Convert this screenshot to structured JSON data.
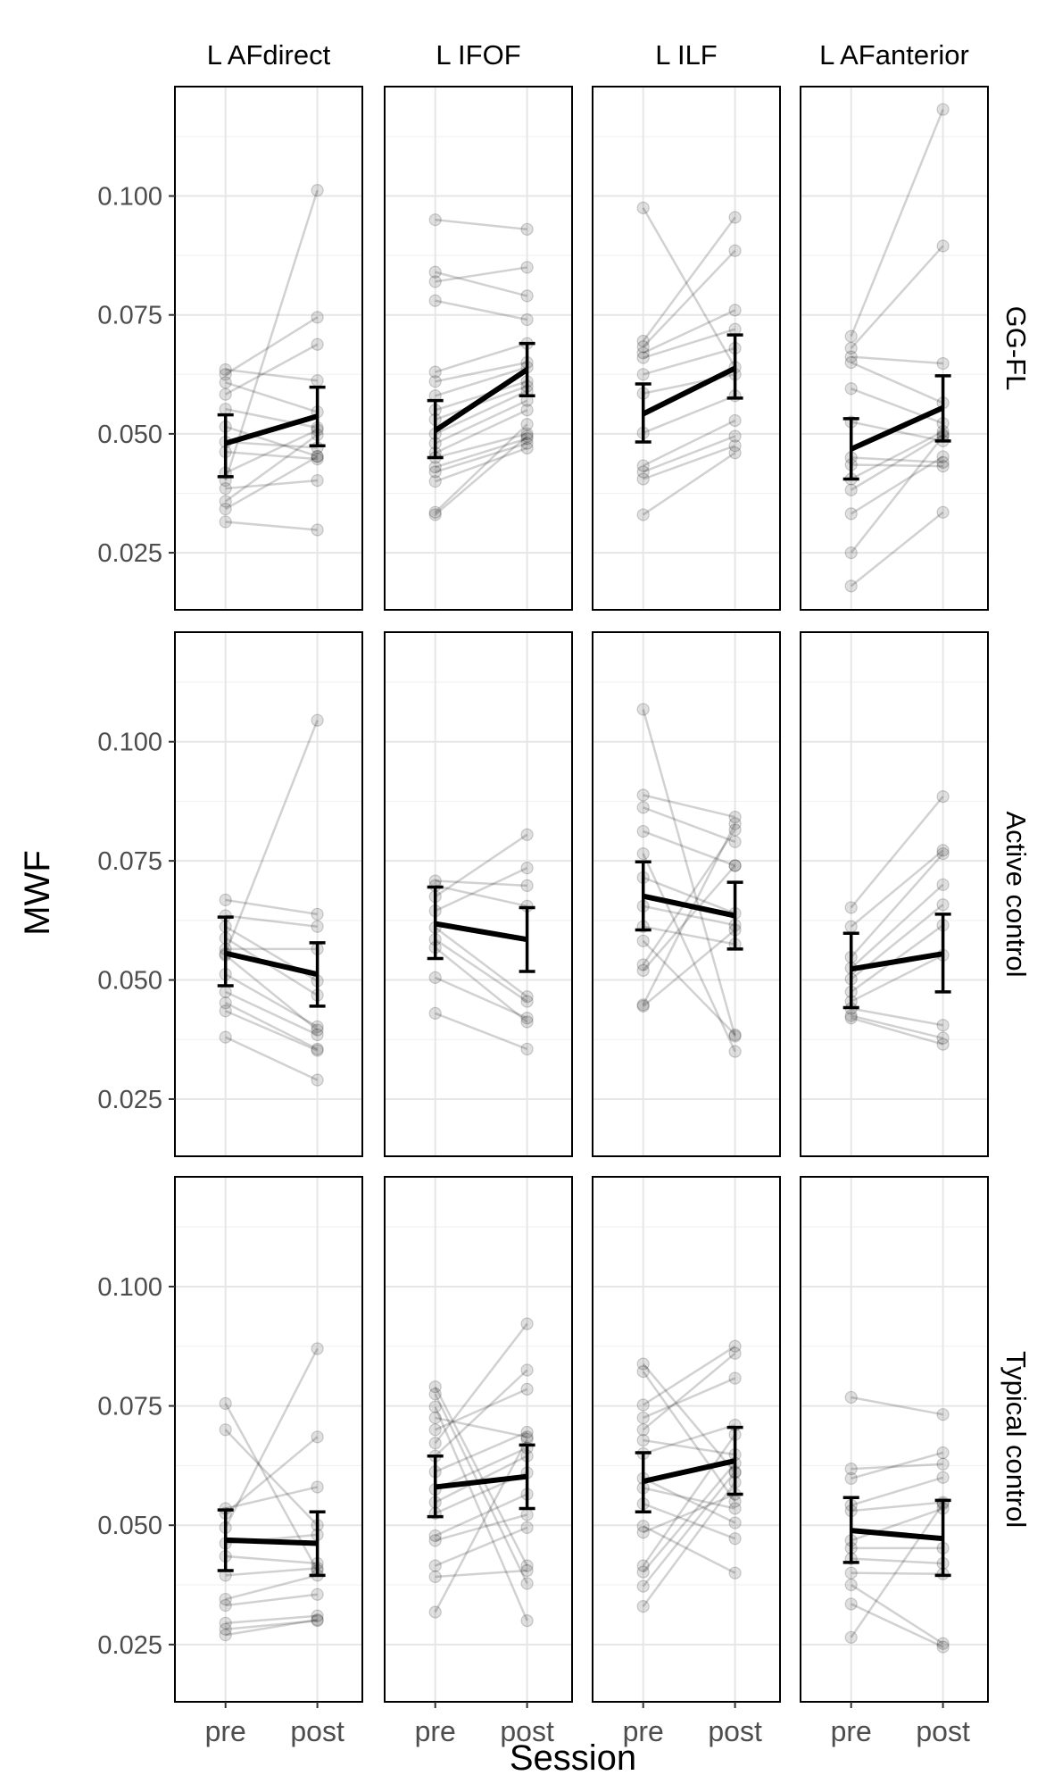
{
  "chart_data": {
    "type": "scatter",
    "description_type": "faceted paired-points with mean and error bars",
    "xlabel": "Session",
    "ylabel": "MWF",
    "x_categories": [
      "pre",
      "post"
    ],
    "ylim": [
      0.013,
      0.123
    ],
    "y_ticks": [
      0.025,
      0.05,
      0.075,
      0.1
    ],
    "y_tick_labels": [
      "0.025",
      "0.050",
      "0.075",
      "0.100"
    ],
    "grid": true,
    "facet_columns": [
      "L AFdirect",
      "L IFOF",
      "L ILF",
      "L AFanterior"
    ],
    "facet_rows": [
      "GG-FL",
      "Active control",
      "Typical control"
    ],
    "panels": [
      {
        "row": "GG-FL",
        "column": "L AFdirect",
        "pairs": [
          [
            0.0635,
            0.0612
          ],
          [
            0.0625,
            0.0745
          ],
          [
            0.0608,
            0.0546
          ],
          [
            0.0583,
            0.0688
          ],
          [
            0.0552,
            0.0513
          ],
          [
            0.0515,
            0.0453
          ],
          [
            0.0483,
            0.0471
          ],
          [
            0.0462,
            0.0447
          ],
          [
            0.0418,
            0.0508
          ],
          [
            0.0402,
            0.1012
          ],
          [
            0.0385,
            0.0402
          ],
          [
            0.0358,
            0.0498
          ],
          [
            0.0342,
            0.0452
          ],
          [
            0.0315,
            0.0298
          ]
        ],
        "mean": [
          0.048,
          0.0537
        ],
        "err": [
          [
            0.041,
            0.054
          ],
          [
            0.0475,
            0.0598
          ]
        ]
      },
      {
        "row": "GG-FL",
        "column": "L IFOF",
        "pairs": [
          [
            0.095,
            0.093
          ],
          [
            0.084,
            0.079
          ],
          [
            0.082,
            0.085
          ],
          [
            0.078,
            0.074
          ],
          [
            0.063,
            0.069
          ],
          [
            0.061,
            0.065
          ],
          [
            0.058,
            0.064
          ],
          [
            0.055,
            0.061
          ],
          [
            0.053,
            0.06
          ],
          [
            0.05,
            0.059
          ],
          [
            0.048,
            0.057
          ],
          [
            0.046,
            0.055
          ],
          [
            0.045,
            0.05
          ],
          [
            0.043,
            0.049
          ],
          [
            0.042,
            0.048
          ],
          [
            0.04,
            0.047
          ],
          [
            0.033,
            0.0495
          ],
          [
            0.0335,
            0.052
          ]
        ],
        "mean": [
          0.0507,
          0.0635
        ],
        "err": [
          [
            0.045,
            0.057
          ],
          [
            0.058,
            0.069
          ]
        ]
      },
      {
        "row": "GG-FL",
        "column": "L ILF",
        "pairs": [
          [
            0.0975,
            0.064
          ],
          [
            0.0695,
            0.0955
          ],
          [
            0.0683,
            0.0885
          ],
          [
            0.067,
            0.076
          ],
          [
            0.066,
            0.072
          ],
          [
            0.0625,
            0.068
          ],
          [
            0.0585,
            0.0625
          ],
          [
            0.0502,
            0.058
          ],
          [
            0.0433,
            0.0528
          ],
          [
            0.042,
            0.0495
          ],
          [
            0.0405,
            0.0475
          ],
          [
            0.033,
            0.046
          ]
        ],
        "mean": [
          0.0542,
          0.0638
        ],
        "err": [
          [
            0.0483,
            0.0605
          ],
          [
            0.0575,
            0.0708
          ]
        ]
      },
      {
        "row": "GG-FL",
        "column": "L AFanterior",
        "pairs": [
          [
            0.0705,
            0.1182
          ],
          [
            0.068,
            0.0895
          ],
          [
            0.0662,
            0.0648
          ],
          [
            0.065,
            0.0565
          ],
          [
            0.0595,
            0.0522
          ],
          [
            0.0525,
            0.0485
          ],
          [
            0.045,
            0.044
          ],
          [
            0.0435,
            0.0432
          ],
          [
            0.0405,
            0.0505
          ],
          [
            0.0382,
            0.0498
          ],
          [
            0.0332,
            0.0452
          ],
          [
            0.025,
            0.0495
          ],
          [
            0.018,
            0.0335
          ]
        ],
        "mean": [
          0.0468,
          0.0555
        ],
        "err": [
          [
            0.0405,
            0.0532
          ],
          [
            0.0485,
            0.0622
          ]
        ]
      },
      {
        "row": "Active control",
        "column": "L AFdirect",
        "pairs": [
          [
            0.0668,
            0.0638
          ],
          [
            0.0635,
            0.0612
          ],
          [
            0.0612,
            0.0498
          ],
          [
            0.0588,
            0.0468
          ],
          [
            0.0565,
            0.0565
          ],
          [
            0.0552,
            0.0395
          ],
          [
            0.0512,
            0.0402
          ],
          [
            0.0475,
            0.0385
          ],
          [
            0.0452,
            0.0355
          ],
          [
            0.0435,
            0.0352
          ],
          [
            0.038,
            0.029
          ],
          [
            0.0555,
            0.1045
          ]
        ],
        "mean": [
          0.0556,
          0.0512
        ],
        "err": [
          [
            0.0488,
            0.0632
          ],
          [
            0.0445,
            0.0578
          ]
        ]
      },
      {
        "row": "Active control",
        "column": "L IFOF",
        "pairs": [
          [
            0.0708,
            0.0698
          ],
          [
            0.0698,
            0.0655
          ],
          [
            0.0675,
            0.0805
          ],
          [
            0.0645,
            0.0735
          ],
          [
            0.061,
            0.0465
          ],
          [
            0.0585,
            0.0455
          ],
          [
            0.0568,
            0.0412
          ],
          [
            0.0505,
            0.042
          ],
          [
            0.043,
            0.0355
          ]
        ],
        "mean": [
          0.0618,
          0.0585
        ],
        "err": [
          [
            0.0545,
            0.0695
          ],
          [
            0.0518,
            0.0652
          ]
        ]
      },
      {
        "row": "Active control",
        "column": "L ILF",
        "pairs": [
          [
            0.1068,
            0.0382
          ],
          [
            0.0888,
            0.0842
          ],
          [
            0.0862,
            0.079
          ],
          [
            0.0812,
            0.074
          ],
          [
            0.0765,
            0.035
          ],
          [
            0.0715,
            0.064
          ],
          [
            0.0655,
            0.0615
          ],
          [
            0.0612,
            0.0575
          ],
          [
            0.0582,
            0.0385
          ],
          [
            0.0532,
            0.0815
          ],
          [
            0.052,
            0.074
          ],
          [
            0.0448,
            0.0828
          ],
          [
            0.0445,
            0.0605
          ]
        ],
        "mean": [
          0.0676,
          0.0635
        ],
        "err": [
          [
            0.0605,
            0.0748
          ],
          [
            0.0565,
            0.0705
          ]
        ]
      },
      {
        "row": "Active control",
        "column": "L AFanterior",
        "pairs": [
          [
            0.0652,
            0.0885
          ],
          [
            0.0612,
            0.0772
          ],
          [
            0.0548,
            0.0765
          ],
          [
            0.0525,
            0.07
          ],
          [
            0.0502,
            0.0658
          ],
          [
            0.0475,
            0.0615
          ],
          [
            0.0455,
            0.0552
          ],
          [
            0.044,
            0.0405
          ],
          [
            0.0425,
            0.0378
          ],
          [
            0.042,
            0.0365
          ]
        ],
        "mean": [
          0.0523,
          0.0555
        ],
        "err": [
          [
            0.0442,
            0.0598
          ],
          [
            0.0475,
            0.0638
          ]
        ]
      },
      {
        "row": "Typical control",
        "column": "L AFdirect",
        "pairs": [
          [
            0.0755,
            0.0405
          ],
          [
            0.07,
            0.05
          ],
          [
            0.0535,
            0.058
          ],
          [
            0.0525,
            0.0685
          ],
          [
            0.0495,
            0.087
          ],
          [
            0.0462,
            0.048
          ],
          [
            0.0435,
            0.042
          ],
          [
            0.0395,
            0.041
          ],
          [
            0.0345,
            0.0395
          ],
          [
            0.0332,
            0.0355
          ],
          [
            0.0295,
            0.031
          ],
          [
            0.0282,
            0.03
          ],
          [
            0.027,
            0.0302
          ]
        ],
        "mean": [
          0.0469,
          0.0462
        ],
        "err": [
          [
            0.0405,
            0.0532
          ],
          [
            0.0395,
            0.0528
          ]
        ]
      },
      {
        "row": "Typical control",
        "column": "L IFOF",
        "pairs": [
          [
            0.079,
            0.0415
          ],
          [
            0.0775,
            0.0378
          ],
          [
            0.0748,
            0.03
          ],
          [
            0.0725,
            0.0685
          ],
          [
            0.07,
            0.0785
          ],
          [
            0.0672,
            0.0922
          ],
          [
            0.0645,
            0.0825
          ],
          [
            0.0612,
            0.0695
          ],
          [
            0.0575,
            0.0662
          ],
          [
            0.0548,
            0.0645
          ],
          [
            0.0525,
            0.061
          ],
          [
            0.0478,
            0.0565
          ],
          [
            0.0468,
            0.0522
          ],
          [
            0.0415,
            0.0495
          ],
          [
            0.0392,
            0.0405
          ],
          [
            0.0318,
            0.068
          ]
        ],
        "mean": [
          0.058,
          0.0602
        ],
        "err": [
          [
            0.0518,
            0.0645
          ],
          [
            0.0535,
            0.0668
          ]
        ]
      },
      {
        "row": "Typical control",
        "column": "L ILF",
        "pairs": [
          [
            0.0838,
            0.061
          ],
          [
            0.0822,
            0.055
          ],
          [
            0.0752,
            0.0875
          ],
          [
            0.0725,
            0.0808
          ],
          [
            0.07,
            0.086
          ],
          [
            0.0678,
            0.0648
          ],
          [
            0.065,
            0.071
          ],
          [
            0.0598,
            0.0505
          ],
          [
            0.0578,
            0.0535
          ],
          [
            0.0545,
            0.0472
          ],
          [
            0.0498,
            0.04
          ],
          [
            0.0485,
            0.0565
          ],
          [
            0.0415,
            0.069
          ],
          [
            0.0402,
            0.063
          ],
          [
            0.0372,
            0.0612
          ],
          [
            0.033,
            0.059
          ]
        ],
        "mean": [
          0.0592,
          0.0635
        ],
        "err": [
          [
            0.0528,
            0.0652
          ],
          [
            0.0565,
            0.0705
          ]
        ]
      },
      {
        "row": "Typical control",
        "column": "L AFanterior",
        "pairs": [
          [
            0.0768,
            0.0732
          ],
          [
            0.0618,
            0.0628
          ],
          [
            0.0598,
            0.0652
          ],
          [
            0.0542,
            0.06
          ],
          [
            0.053,
            0.0548
          ],
          [
            0.0468,
            0.0535
          ],
          [
            0.0452,
            0.0452
          ],
          [
            0.043,
            0.042
          ],
          [
            0.04,
            0.0398
          ],
          [
            0.0375,
            0.0252
          ],
          [
            0.0335,
            0.0245
          ],
          [
            0.0265,
            0.0545
          ]
        ],
        "mean": [
          0.0489,
          0.0472
        ],
        "err": [
          [
            0.0422,
            0.0558
          ],
          [
            0.0395,
            0.0552
          ]
        ]
      }
    ]
  }
}
